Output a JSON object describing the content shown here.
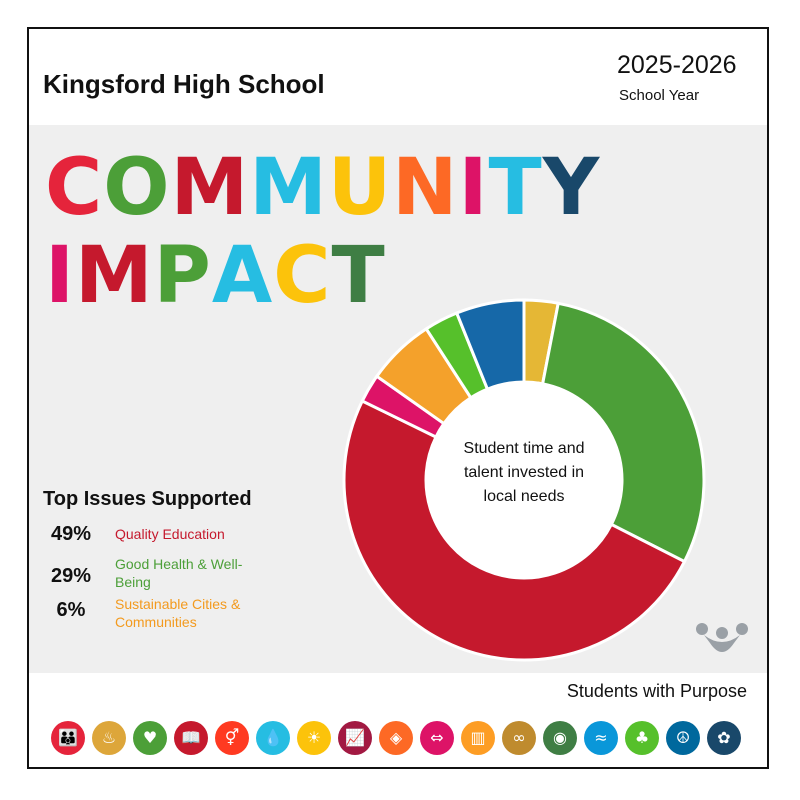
{
  "header": {
    "school_name": "Kingsford High School",
    "year": "2025-2026",
    "year_label": "School Year"
  },
  "headline": {
    "line1": [
      "C",
      "O",
      "M",
      "M",
      "U",
      "N",
      "I",
      "T",
      "Y"
    ],
    "line2": [
      "I",
      "M",
      "P",
      "A",
      "C",
      "T"
    ],
    "line1_colors": [
      "#e5243b",
      "#4c9f38",
      "#c5192d",
      "#26bde2",
      "#fcc30b",
      "#fd6925",
      "#dd1367",
      "#26bde2",
      "#19486a"
    ],
    "line2_colors": [
      "#dd1367",
      "#c5192d",
      "#4c9f38",
      "#26bde2",
      "#fcc30b",
      "#3f7e44"
    ]
  },
  "chart_data": {
    "type": "pie",
    "center_label": "Student time and talent invested in local needs",
    "slices": [
      {
        "value": 3,
        "color": "#e5b735"
      },
      {
        "value": 29,
        "color": "#4c9f38"
      },
      {
        "value": 49,
        "color": "#c5192d"
      },
      {
        "value": 2.5,
        "color": "#dd1367"
      },
      {
        "value": 6,
        "color": "#f4a12b"
      },
      {
        "value": 3,
        "color": "#56c02b"
      },
      {
        "value": 6,
        "color": "#1668a8"
      }
    ]
  },
  "issues": {
    "title": "Top Issues Supported",
    "items": [
      {
        "percent": "49%",
        "name": "Quality Education",
        "color": "#c5192d"
      },
      {
        "percent": "29%",
        "name": "Good Health & Well-Being",
        "color": "#4c9f38"
      },
      {
        "percent": "6%",
        "name": "Sustainable Cities & Communities",
        "color": "#f39a1e"
      }
    ]
  },
  "footer": {
    "title": "Students with Purpose",
    "icons": [
      {
        "name": "no-poverty-icon",
        "color": "#e5243b",
        "glyph": "👪"
      },
      {
        "name": "zero-hunger-icon",
        "color": "#dda63a",
        "glyph": "♨"
      },
      {
        "name": "good-health-icon",
        "color": "#4c9f38",
        "glyph": "♥"
      },
      {
        "name": "quality-education-icon",
        "color": "#c5192d",
        "glyph": "📖"
      },
      {
        "name": "gender-equality-icon",
        "color": "#ff3a21",
        "glyph": "⚥"
      },
      {
        "name": "clean-water-icon",
        "color": "#26bde2",
        "glyph": "💧"
      },
      {
        "name": "clean-energy-icon",
        "color": "#fcc30b",
        "glyph": "☀"
      },
      {
        "name": "decent-work-icon",
        "color": "#a21942",
        "glyph": "📈"
      },
      {
        "name": "industry-innovation-icon",
        "color": "#fd6925",
        "glyph": "◈"
      },
      {
        "name": "reduced-inequalities-icon",
        "color": "#dd1367",
        "glyph": "⇔"
      },
      {
        "name": "sustainable-cities-icon",
        "color": "#fd9d24",
        "glyph": "▥"
      },
      {
        "name": "responsible-consumption-icon",
        "color": "#bf8b2e",
        "glyph": "∞"
      },
      {
        "name": "climate-action-icon",
        "color": "#3f7e44",
        "glyph": "◉"
      },
      {
        "name": "life-below-water-icon",
        "color": "#0a97d9",
        "glyph": "≈"
      },
      {
        "name": "life-on-land-icon",
        "color": "#56c02b",
        "glyph": "♣"
      },
      {
        "name": "peace-justice-icon",
        "color": "#00689d",
        "glyph": "☮"
      },
      {
        "name": "partnerships-icon",
        "color": "#19486a",
        "glyph": "✿"
      }
    ]
  }
}
